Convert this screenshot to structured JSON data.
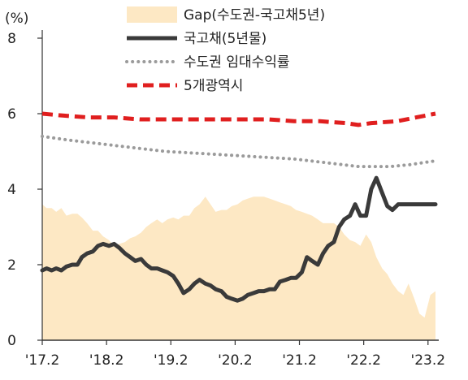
{
  "chart_data": {
    "type": "line",
    "ylabel": "(%)",
    "ylim": [
      0,
      8
    ],
    "y_ticks": [
      "0",
      "2",
      "4",
      "6",
      "8"
    ],
    "x_ticks": [
      "'17.2",
      "'18.2",
      "'19.2",
      "'20.2",
      "'21.2",
      "'22.2",
      "'23.2"
    ],
    "x_tick_dates": [
      2017.083,
      2018.083,
      2019.083,
      2020.083,
      2021.083,
      2022.083,
      2023.083
    ],
    "xlim": [
      2017.083,
      2023.25
    ],
    "legend_position": "top",
    "grid": false,
    "series": [
      {
        "name": "Gap(수도권-국고채5년)",
        "style": "area",
        "color": "#fde8c4",
        "x": [
          2017.083,
          2017.15,
          2017.23,
          2017.3,
          2017.38,
          2017.46,
          2017.55,
          2017.63,
          2017.7,
          2017.78,
          2017.87,
          2017.95,
          2018.03,
          2018.12,
          2018.2,
          2018.28,
          2018.37,
          2018.45,
          2018.53,
          2018.62,
          2018.7,
          2018.78,
          2018.87,
          2018.95,
          2019.03,
          2019.12,
          2019.2,
          2019.28,
          2019.37,
          2019.45,
          2019.53,
          2019.62,
          2019.7,
          2019.78,
          2019.87,
          2019.95,
          2020.03,
          2020.12,
          2020.2,
          2020.28,
          2020.37,
          2020.45,
          2020.53,
          2020.62,
          2020.7,
          2020.78,
          2020.87,
          2020.95,
          2021.03,
          2021.12,
          2021.2,
          2021.28,
          2021.37,
          2021.45,
          2021.53,
          2021.62,
          2021.7,
          2021.78,
          2021.87,
          2021.95,
          2022.03,
          2022.12,
          2022.2,
          2022.28,
          2022.37,
          2022.45,
          2022.53,
          2022.62,
          2022.7,
          2022.78,
          2022.87,
          2022.95,
          2023.03,
          2023.12,
          2023.2
        ],
        "values": [
          3.6,
          3.5,
          3.5,
          3.4,
          3.5,
          3.3,
          3.35,
          3.35,
          3.25,
          3.1,
          2.9,
          2.9,
          2.75,
          2.65,
          2.5,
          2.55,
          2.6,
          2.7,
          2.75,
          2.85,
          3.0,
          3.1,
          3.2,
          3.1,
          3.2,
          3.25,
          3.2,
          3.3,
          3.3,
          3.5,
          3.6,
          3.8,
          3.6,
          3.4,
          3.45,
          3.45,
          3.55,
          3.6,
          3.7,
          3.75,
          3.8,
          3.8,
          3.8,
          3.75,
          3.7,
          3.65,
          3.6,
          3.55,
          3.45,
          3.4,
          3.35,
          3.3,
          3.2,
          3.1,
          3.1,
          3.1,
          3.0,
          2.8,
          2.65,
          2.6,
          2.5,
          2.8,
          2.6,
          2.2,
          1.9,
          1.75,
          1.5,
          1.3,
          1.2,
          1.5,
          1.1,
          0.7,
          0.6,
          1.2,
          1.3
        ]
      },
      {
        "name": "국고채(5년물)",
        "style": "solid",
        "color": "#3a3a3a",
        "x": [
          2017.083,
          2017.15,
          2017.23,
          2017.3,
          2017.38,
          2017.46,
          2017.55,
          2017.63,
          2017.7,
          2017.78,
          2017.87,
          2017.95,
          2018.03,
          2018.12,
          2018.2,
          2018.28,
          2018.37,
          2018.45,
          2018.53,
          2018.62,
          2018.7,
          2018.78,
          2018.87,
          2018.95,
          2019.03,
          2019.12,
          2019.2,
          2019.28,
          2019.37,
          2019.45,
          2019.53,
          2019.62,
          2019.7,
          2019.78,
          2019.87,
          2019.95,
          2020.03,
          2020.12,
          2020.2,
          2020.28,
          2020.37,
          2020.45,
          2020.53,
          2020.62,
          2020.7,
          2020.78,
          2020.87,
          2020.95,
          2021.03,
          2021.12,
          2021.2,
          2021.28,
          2021.37,
          2021.45,
          2021.53,
          2021.62,
          2021.7,
          2021.78,
          2021.87,
          2021.95,
          2022.03,
          2022.12,
          2022.2,
          2022.28,
          2022.37,
          2022.45,
          2022.53,
          2022.62,
          2022.7,
          2022.78,
          2022.87,
          2022.95,
          2023.03,
          2023.12,
          2023.2
        ],
        "values": [
          1.85,
          1.9,
          1.85,
          1.9,
          1.85,
          1.95,
          2.0,
          2.0,
          2.2,
          2.3,
          2.35,
          2.5,
          2.55,
          2.5,
          2.55,
          2.45,
          2.3,
          2.2,
          2.1,
          2.15,
          2.0,
          1.9,
          1.9,
          1.85,
          1.8,
          1.7,
          1.5,
          1.25,
          1.35,
          1.5,
          1.6,
          1.5,
          1.45,
          1.35,
          1.3,
          1.15,
          1.1,
          1.05,
          1.1,
          1.2,
          1.25,
          1.3,
          1.3,
          1.35,
          1.35,
          1.55,
          1.6,
          1.65,
          1.65,
          1.8,
          2.2,
          2.1,
          2.0,
          2.3,
          2.5,
          2.6,
          3.0,
          3.2,
          3.3,
          3.6,
          3.3,
          3.3,
          4.0,
          4.3,
          3.9,
          3.55,
          3.45,
          3.6,
          3.6,
          3.6,
          3.6,
          3.6,
          3.6,
          3.6,
          3.6
        ]
      },
      {
        "name": "수도권 임대수익률",
        "style": "dotted",
        "color": "#9b9b9b",
        "x": [
          2017.083,
          2017.5,
          2018.0,
          2018.5,
          2019.0,
          2019.5,
          2020.0,
          2020.5,
          2021.0,
          2021.5,
          2022.0,
          2022.5,
          2022.8,
          2023.0,
          2023.2
        ],
        "values": [
          5.4,
          5.3,
          5.2,
          5.1,
          5.0,
          4.95,
          4.9,
          4.85,
          4.8,
          4.7,
          4.6,
          4.6,
          4.65,
          4.7,
          4.75
        ]
      },
      {
        "name": "5개광역시",
        "style": "dashed",
        "color": "#e01f1f",
        "x": [
          2017.083,
          2017.4,
          2017.8,
          2018.2,
          2018.6,
          2019.0,
          2019.4,
          2019.8,
          2020.2,
          2020.6,
          2021.0,
          2021.4,
          2021.8,
          2022.0,
          2022.2,
          2022.6,
          2022.9,
          2023.2
        ],
        "values": [
          6.0,
          5.95,
          5.9,
          5.9,
          5.85,
          5.85,
          5.85,
          5.85,
          5.85,
          5.85,
          5.8,
          5.8,
          5.75,
          5.7,
          5.75,
          5.8,
          5.9,
          6.0
        ]
      }
    ]
  }
}
